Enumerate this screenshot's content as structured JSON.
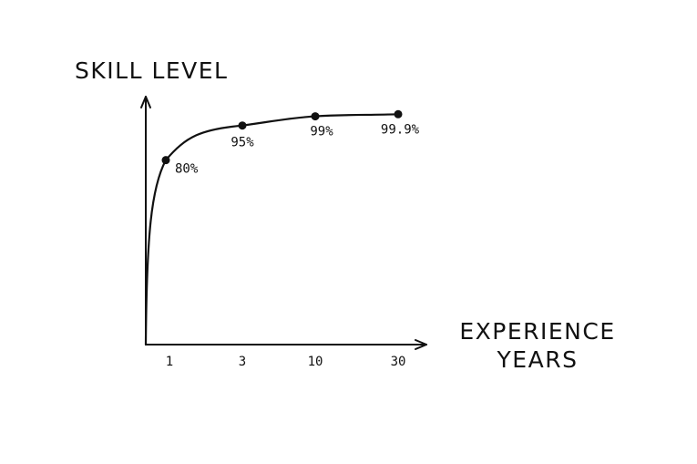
{
  "chart_data": {
    "type": "line",
    "ylabel": "SKILL LEVEL",
    "xlabel_line1": "EXPERIENCE",
    "xlabel_line2": "YEARS",
    "categories": [
      "1",
      "3",
      "10",
      "30"
    ],
    "values": [
      80,
      95,
      99,
      99.9
    ],
    "data_labels": [
      "80%",
      "95%",
      "99%",
      "99.9%"
    ],
    "x_scale": "log",
    "grid": false,
    "legend": "none",
    "line_color": "#111111"
  }
}
